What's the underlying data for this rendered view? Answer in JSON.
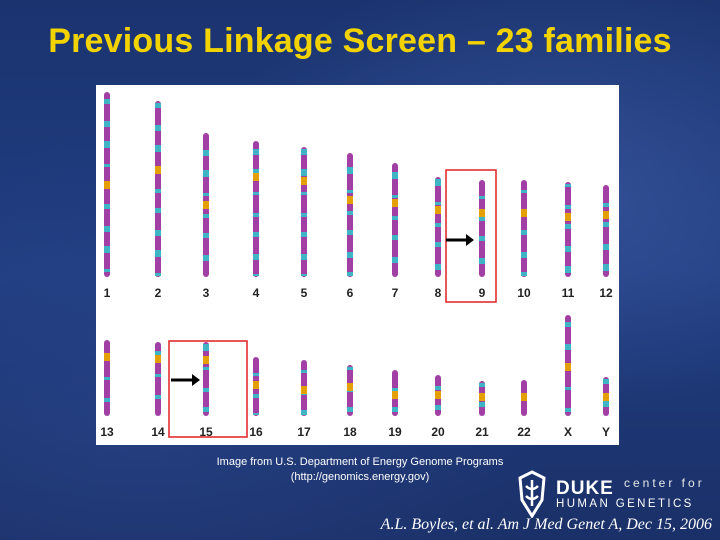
{
  "title": "Previous Linkage Screen – 23 families",
  "karyotype": {
    "row1_labels": [
      "1",
      "2",
      "3",
      "4",
      "5",
      "6",
      "7",
      "8",
      "9",
      "10",
      "11",
      "12"
    ],
    "row2_labels": [
      "13",
      "14",
      "15",
      "16",
      "17",
      "18",
      "19",
      "20",
      "21",
      "22",
      "X",
      "Y"
    ],
    "highlighted_chromosomes": [
      "9",
      "15"
    ],
    "colors": {
      "band_purple": "#a23fa5",
      "band_cyan": "#3fb4c4",
      "centromere": "#e3a000",
      "highlight_box": "#e02020"
    }
  },
  "caption": {
    "line1": "Image from U.S. Department of Energy Genome Programs",
    "line2": "(http://genomics.energy.gov)"
  },
  "logo": {
    "duke": "DUKE",
    "center_for": "center for",
    "human_genetics": "HUMAN GENETICS"
  },
  "citation": "A.L. Boyles, et al. Am J Med Genet A, Dec 15, 2006"
}
